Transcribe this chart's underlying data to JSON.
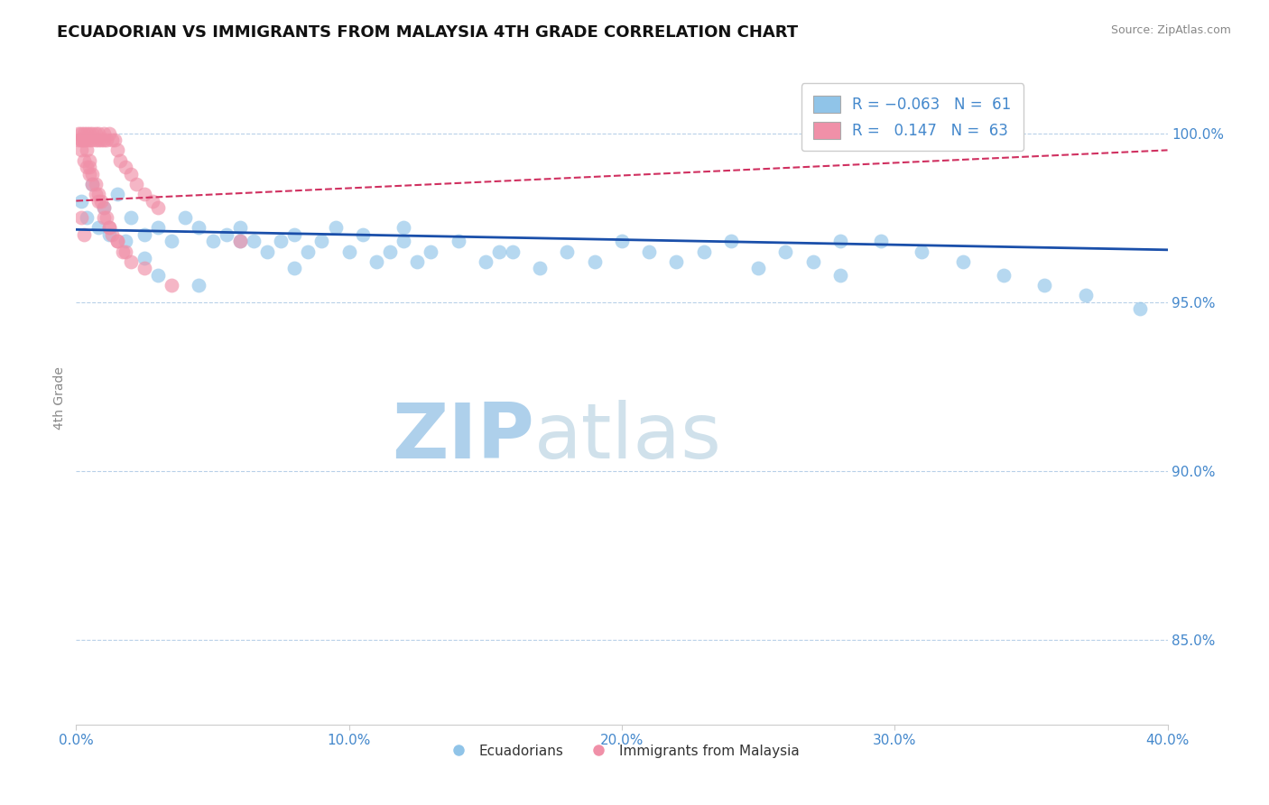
{
  "title": "ECUADORIAN VS IMMIGRANTS FROM MALAYSIA 4TH GRADE CORRELATION CHART",
  "source_text": "Source: ZipAtlas.com",
  "ylabel": "4th Grade",
  "y_ticks": [
    0.85,
    0.9,
    0.95,
    1.0
  ],
  "y_tick_labels": [
    "85.0%",
    "90.0%",
    "95.0%",
    "100.0%"
  ],
  "x_min": 0.0,
  "x_max": 0.4,
  "y_min": 0.825,
  "y_max": 1.018,
  "color_blue": "#90c4e8",
  "color_pink": "#f090a8",
  "color_trendline_blue": "#1a4faa",
  "color_trendline_pink": "#d03060",
  "watermark_color": "#cce0f0",
  "grid_color": "#b8d0e8",
  "title_color": "#111111",
  "axis_label_color": "#4488cc",
  "ecuadorians_x": [
    0.002,
    0.004,
    0.006,
    0.008,
    0.01,
    0.012,
    0.015,
    0.018,
    0.02,
    0.025,
    0.03,
    0.035,
    0.04,
    0.045,
    0.05,
    0.055,
    0.06,
    0.065,
    0.07,
    0.075,
    0.08,
    0.085,
    0.09,
    0.095,
    0.1,
    0.105,
    0.11,
    0.115,
    0.12,
    0.125,
    0.13,
    0.14,
    0.15,
    0.16,
    0.17,
    0.18,
    0.19,
    0.2,
    0.21,
    0.22,
    0.23,
    0.24,
    0.25,
    0.26,
    0.27,
    0.28,
    0.295,
    0.31,
    0.325,
    0.34,
    0.355,
    0.37,
    0.39,
    0.025,
    0.03,
    0.045,
    0.06,
    0.08,
    0.12,
    0.155,
    0.28
  ],
  "ecuadorians_y": [
    0.98,
    0.975,
    0.985,
    0.972,
    0.978,
    0.97,
    0.982,
    0.968,
    0.975,
    0.97,
    0.972,
    0.968,
    0.975,
    0.972,
    0.968,
    0.97,
    0.972,
    0.968,
    0.965,
    0.968,
    0.97,
    0.965,
    0.968,
    0.972,
    0.965,
    0.97,
    0.962,
    0.965,
    0.968,
    0.962,
    0.965,
    0.968,
    0.962,
    0.965,
    0.96,
    0.965,
    0.962,
    0.968,
    0.965,
    0.962,
    0.965,
    0.968,
    0.96,
    0.965,
    0.962,
    0.958,
    0.968,
    0.965,
    0.962,
    0.958,
    0.955,
    0.952,
    0.948,
    0.963,
    0.958,
    0.955,
    0.968,
    0.96,
    0.972,
    0.965,
    0.968
  ],
  "malaysia_x": [
    0.001,
    0.002,
    0.002,
    0.003,
    0.003,
    0.004,
    0.004,
    0.005,
    0.005,
    0.006,
    0.006,
    0.007,
    0.007,
    0.008,
    0.008,
    0.009,
    0.01,
    0.01,
    0.011,
    0.012,
    0.013,
    0.014,
    0.015,
    0.016,
    0.018,
    0.02,
    0.022,
    0.025,
    0.028,
    0.03,
    0.002,
    0.003,
    0.004,
    0.005,
    0.005,
    0.006,
    0.007,
    0.008,
    0.009,
    0.01,
    0.011,
    0.012,
    0.013,
    0.015,
    0.017,
    0.02,
    0.001,
    0.002,
    0.003,
    0.004,
    0.005,
    0.006,
    0.007,
    0.008,
    0.01,
    0.012,
    0.015,
    0.018,
    0.025,
    0.035,
    0.002,
    0.003,
    0.06
  ],
  "malaysia_y": [
    1.0,
    1.0,
    0.998,
    1.0,
    0.998,
    1.0,
    0.998,
    1.0,
    0.998,
    1.0,
    0.998,
    1.0,
    0.998,
    1.0,
    0.998,
    0.998,
    1.0,
    0.998,
    0.998,
    1.0,
    0.998,
    0.998,
    0.995,
    0.992,
    0.99,
    0.988,
    0.985,
    0.982,
    0.98,
    0.978,
    0.998,
    0.998,
    0.995,
    0.992,
    0.99,
    0.988,
    0.985,
    0.982,
    0.98,
    0.978,
    0.975,
    0.972,
    0.97,
    0.968,
    0.965,
    0.962,
    0.998,
    0.995,
    0.992,
    0.99,
    0.988,
    0.985,
    0.982,
    0.98,
    0.975,
    0.972,
    0.968,
    0.965,
    0.96,
    0.955,
    0.975,
    0.97,
    0.968
  ],
  "trendline_blue_y0": 0.9715,
  "trendline_blue_y1": 0.9655,
  "trendline_pink_y0": 0.98,
  "trendline_pink_y1": 0.995
}
